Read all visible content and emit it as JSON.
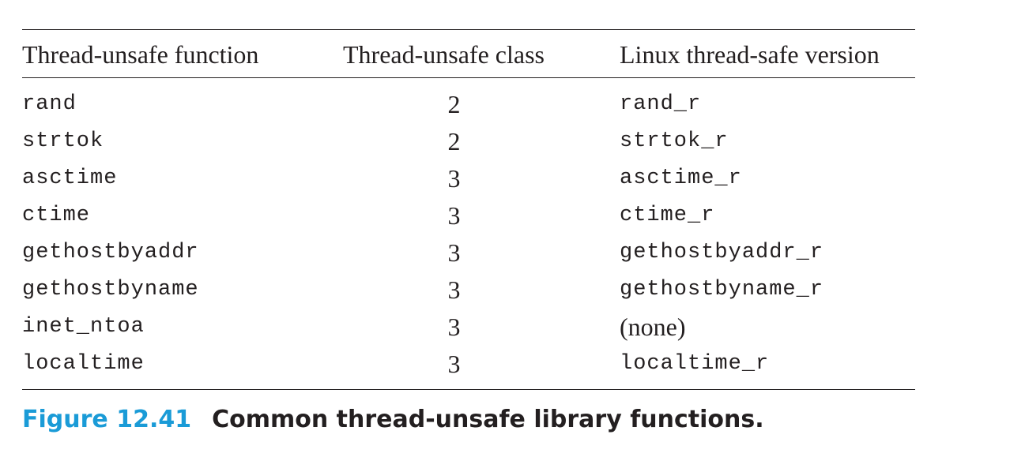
{
  "table": {
    "headers": {
      "function": "Thread-unsafe function",
      "class": "Thread-unsafe class",
      "safe_version": "Linux thread-safe version"
    },
    "rows": [
      {
        "function": "rand",
        "class": "2",
        "safe_version": "rand_r"
      },
      {
        "function": "strtok",
        "class": "2",
        "safe_version": "strtok_r"
      },
      {
        "function": "asctime",
        "class": "3",
        "safe_version": "asctime_r"
      },
      {
        "function": "ctime",
        "class": "3",
        "safe_version": "ctime_r"
      },
      {
        "function": "gethostbyaddr",
        "class": "3",
        "safe_version": "gethostbyaddr_r"
      },
      {
        "function": "gethostbyname",
        "class": "3",
        "safe_version": "gethostbyname_r"
      },
      {
        "function": "inet_ntoa",
        "class": "3",
        "safe_version": "(none)"
      },
      {
        "function": "localtime",
        "class": "3",
        "safe_version": "localtime_r"
      }
    ]
  },
  "caption": {
    "label": "Figure 12.41",
    "title": "Common thread-unsafe library functions."
  },
  "colors": {
    "figure_label": "#1a9bd7",
    "text": "#231f20"
  }
}
